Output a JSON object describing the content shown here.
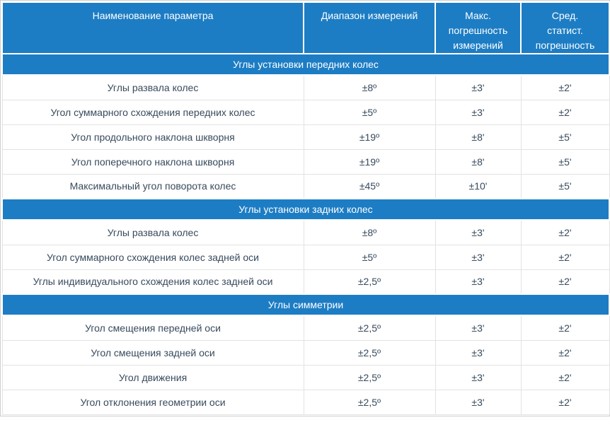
{
  "colors": {
    "accent": "#1d7dc4",
    "header_text": "#ffffff",
    "cell_text": "#374a5c",
    "grid_line": "#e3e3e3",
    "outer_border": "#cfcfcf"
  },
  "table": {
    "header": {
      "parameter": "Наименование параметра",
      "range": "Диапазон измерений",
      "max_error": "Макс.\nпогрешность\nизмерений",
      "stat_error": "Сред.\nстатист.\nпогрешность"
    },
    "sections": [
      {
        "title": "Углы установки передних колес",
        "rows": [
          {
            "name": "Углы развала колес",
            "range": "±8º",
            "max_error": "±3'",
            "stat_error": "±2'"
          },
          {
            "name": "Угол суммарного схождения передних колес",
            "range": "±5º",
            "max_error": "±3'",
            "stat_error": "±2'"
          },
          {
            "name": "Угол продольного наклона шкворня",
            "range": "±19º",
            "max_error": "±8'",
            "stat_error": "±5'"
          },
          {
            "name": "Угол поперечного наклона шкворня",
            "range": "±19º",
            "max_error": "±8'",
            "stat_error": "±5'"
          },
          {
            "name": "Максимальный угол поворота колес",
            "range": "±45º",
            "max_error": "±10'",
            "stat_error": "±5'"
          }
        ]
      },
      {
        "title": "Углы установки задних колес",
        "rows": [
          {
            "name": "Углы развала колес",
            "range": "±8º",
            "max_error": "±3'",
            "stat_error": "±2'"
          },
          {
            "name": "Угол суммарного схождения колес задней оси",
            "range": "±5º",
            "max_error": "±3'",
            "stat_error": "±2'"
          },
          {
            "name": "Углы индивидуального схождения колес задней оси",
            "range": "±2,5º",
            "max_error": "±3'",
            "stat_error": "±2'"
          }
        ]
      },
      {
        "title": "Углы симметрии",
        "rows": [
          {
            "name": "Угол смещения передней оси",
            "range": "±2,5º",
            "max_error": "±3'",
            "stat_error": "±2'"
          },
          {
            "name": "Угол смещения задней оси",
            "range": "±2,5º",
            "max_error": "±3'",
            "stat_error": "±2'"
          },
          {
            "name": "Угол движения",
            "range": "±2,5º",
            "max_error": "±3'",
            "stat_error": "±2'"
          },
          {
            "name": "Угол отклонения геометрии оси",
            "range": "±2,5º",
            "max_error": "±3'",
            "stat_error": "±2'"
          }
        ]
      }
    ]
  }
}
